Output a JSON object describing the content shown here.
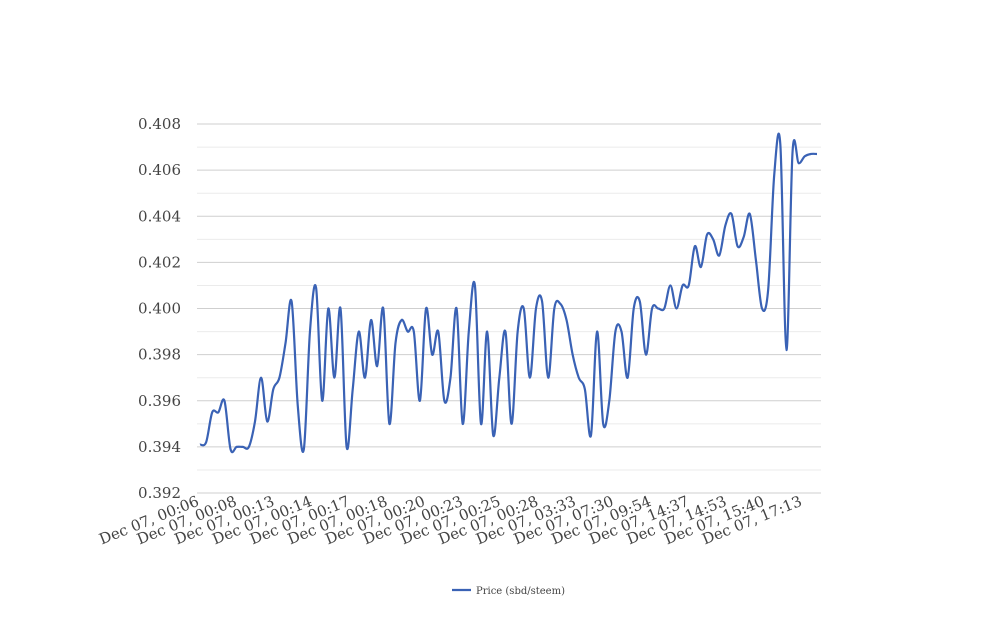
{
  "chart_data": {
    "type": "line",
    "title": "",
    "xlabel": "",
    "ylabel": "",
    "ylim": [
      0.392,
      0.408
    ],
    "yticks": [
      "0.392",
      "0.394",
      "0.396",
      "0.398",
      "0.400",
      "0.402",
      "0.404",
      "0.406",
      "0.408"
    ],
    "xtick_labels": [
      "Dec 07, 00:06",
      "Dec 07, 00:08",
      "Dec 07, 00:13",
      "Dec 07, 00:14",
      "Dec 07, 00:17",
      "Dec 07, 00:18",
      "Dec 07, 00:20",
      "Dec 07, 00:23",
      "Dec 07, 00:25",
      "Dec 07, 00:28",
      "Dec 07, 03:33",
      "Dec 07, 07:30",
      "Dec 07, 09:54",
      "Dec 07, 14:37",
      "Dec 07, 14:53",
      "Dec 07, 15:40",
      "Dec 07, 17:13"
    ],
    "grid": true,
    "legend_position": "bottom",
    "series": [
      {
        "name": "Price (sbd/steem)",
        "color": "#3a62b5",
        "values": [
          0.3941,
          0.3942,
          0.3955,
          0.3955,
          0.396,
          0.3939,
          0.394,
          0.394,
          0.394,
          0.3951,
          0.397,
          0.3951,
          0.3965,
          0.397,
          0.3985,
          0.4003,
          0.3958,
          0.3939,
          0.399,
          0.4009,
          0.396,
          0.4,
          0.397,
          0.4,
          0.394,
          0.3965,
          0.399,
          0.397,
          0.3995,
          0.3975,
          0.4,
          0.395,
          0.3985,
          0.3995,
          0.399,
          0.399,
          0.396,
          0.4,
          0.398,
          0.399,
          0.396,
          0.397,
          0.4,
          0.395,
          0.399,
          0.401,
          0.395,
          0.399,
          0.3945,
          0.397,
          0.399,
          0.395,
          0.399,
          0.4,
          0.397,
          0.4,
          0.4003,
          0.397,
          0.4,
          0.4002,
          0.3995,
          0.398,
          0.397,
          0.3965,
          0.3945,
          0.399,
          0.395,
          0.396,
          0.399,
          0.399,
          0.397,
          0.4,
          0.4003,
          0.398,
          0.4,
          0.4,
          0.4,
          0.401,
          0.4,
          0.401,
          0.401,
          0.4027,
          0.4018,
          0.4032,
          0.403,
          0.4023,
          0.4036,
          0.4041,
          0.4027,
          0.4031,
          0.4041,
          0.4021,
          0.4,
          0.4008,
          0.4058,
          0.4071,
          0.3982,
          0.4068,
          0.4063,
          0.4066,
          0.4067,
          0.4067
        ]
      }
    ]
  }
}
